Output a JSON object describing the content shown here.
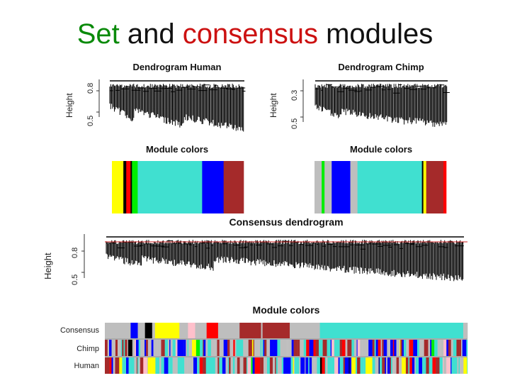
{
  "slide": {
    "title_part1": "Set",
    "title_part2": " and ",
    "title_part3": "consensus",
    "title_part4": " modules"
  },
  "human": {
    "dendrogram_title": "Dendrogram Human",
    "module_colors_title": "Module colors",
    "ylabel": "Height",
    "ticks": [
      "0.5",
      "0.8"
    ],
    "module_blocks": [
      {
        "color": "#ffff00",
        "w": 16
      },
      {
        "color": "#000000",
        "w": 4
      },
      {
        "color": "#ff0000",
        "w": 6
      },
      {
        "color": "#000000",
        "w": 2
      },
      {
        "color": "#00ee00",
        "w": 8
      },
      {
        "color": "#40e0d0",
        "w": 90
      },
      {
        "color": "#0000ff",
        "w": 30
      },
      {
        "color": "#a52a2a",
        "w": 28
      }
    ]
  },
  "chimp": {
    "dendrogram_title": "Dendrogram Chimp",
    "module_colors_title": "Module colors",
    "ylabel": "Height",
    "ticks": [
      "0.5",
      "0.3"
    ],
    "module_blocks": [
      {
        "color": "#bebebe",
        "w": 10
      },
      {
        "color": "#00ee00",
        "w": 4
      },
      {
        "color": "#bebebe",
        "w": 10
      },
      {
        "color": "#0000ff",
        "w": 26
      },
      {
        "color": "#bebebe",
        "w": 10
      },
      {
        "color": "#40e0d0",
        "w": 90
      },
      {
        "color": "#000000",
        "w": 2
      },
      {
        "color": "#ffff00",
        "w": 4
      },
      {
        "color": "#a52a2a",
        "w": 24
      },
      {
        "color": "#ff0000",
        "w": 4
      }
    ]
  },
  "consensus": {
    "dendrogram_title": "Consensus dendrogram",
    "module_colors_title": "Module colors",
    "ylabel": "Height",
    "ticks": [
      "0.5",
      "0.8"
    ],
    "row_labels": [
      "Consensus",
      "Chimp",
      "Human"
    ],
    "consensus_blocks": [
      {
        "color": "#bebebe",
        "w": 36
      },
      {
        "color": "#0000ff",
        "w": 10
      },
      {
        "color": "#bebebe",
        "w": 10
      },
      {
        "color": "#000000",
        "w": 10
      },
      {
        "color": "#bebebe",
        "w": 4
      },
      {
        "color": "#ffff00",
        "w": 34
      },
      {
        "color": "#bebebe",
        "w": 12
      },
      {
        "color": "#ffc0cb",
        "w": 10
      },
      {
        "color": "#bebebe",
        "w": 16
      },
      {
        "color": "#ff0000",
        "w": 16
      },
      {
        "color": "#bebebe",
        "w": 30
      },
      {
        "color": "#a52a2a",
        "w": 30
      },
      {
        "color": "#bebebe",
        "w": 2
      },
      {
        "color": "#a52a2a",
        "w": 38
      },
      {
        "color": "#bebebe",
        "w": 42
      },
      {
        "color": "#40e0d0",
        "w": 200
      },
      {
        "color": "#bebebe",
        "w": 6
      }
    ]
  },
  "colors": {
    "title_green": "#0a8a0a",
    "title_red": "#cc1111",
    "palette": [
      "#bebebe",
      "#0000ff",
      "#a52a2a",
      "#40e0d0",
      "#ffff00",
      "#ff0000",
      "#00ee00",
      "#000000",
      "#ffc0cb",
      "#ffffff",
      "#00008b"
    ]
  }
}
